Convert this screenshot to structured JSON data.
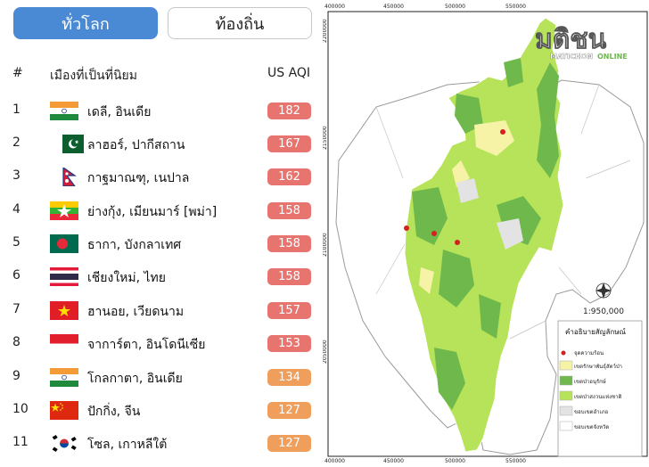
{
  "tabs": {
    "global": "ทั่วโลก",
    "local": "ท้องถิ่น"
  },
  "table": {
    "col_rank": "#",
    "col_city": "เมืองที่เป็นที่นิยม",
    "col_aqi": "US AQI",
    "rows": [
      {
        "rank": "1",
        "city": "เดลี, อินเดีย",
        "aqi": "182",
        "color": "#e8746f",
        "flag": "india-flag"
      },
      {
        "rank": "2",
        "city": "ลาฮอร์, ปากีสถาน",
        "aqi": "167",
        "color": "#e8746f",
        "flag": "pakistan-flag"
      },
      {
        "rank": "3",
        "city": "กาฐมาณฑุ, เนปาล",
        "aqi": "162",
        "color": "#e8746f",
        "flag": "nepal-flag"
      },
      {
        "rank": "4",
        "city": "ย่างกุ้ง, เมียนมาร์ [พม่า]",
        "aqi": "158",
        "color": "#e8746f",
        "flag": "myanmar-flag"
      },
      {
        "rank": "5",
        "city": "ธากา, บังกลาเทศ",
        "aqi": "158",
        "color": "#e8746f",
        "flag": "bangladesh-flag"
      },
      {
        "rank": "6",
        "city": "เชียงใหม่, ไทย",
        "aqi": "158",
        "color": "#e8746f",
        "flag": "thailand-flag"
      },
      {
        "rank": "7",
        "city": "ฮานอย, เวียดนาม",
        "aqi": "157",
        "color": "#e8746f",
        "flag": "vietnam-flag"
      },
      {
        "rank": "8",
        "city": "จาการ์ตา, อินโดนีเซีย",
        "aqi": "153",
        "color": "#e8746f",
        "flag": "indonesia-flag"
      },
      {
        "rank": "9",
        "city": "โกลกาตา, อินเดีย",
        "aqi": "134",
        "color": "#f09e5c",
        "flag": "india-flag"
      },
      {
        "rank": "10",
        "city": "ปักกิ่ง, จีน",
        "aqi": "127",
        "color": "#f09e5c",
        "flag": "china-flag"
      },
      {
        "rank": "11",
        "city": "โซล, เกาหลีใต้",
        "aqi": "127",
        "color": "#f09e5c",
        "flag": "korea-flag"
      }
    ]
  },
  "map": {
    "x_ticks": [
      "400000",
      "450000",
      "500000",
      "550000"
    ],
    "y_ticks": [
      "2200000",
      "2150000",
      "2100000",
      "2050000"
    ],
    "scale": "1:950,000",
    "watermark": {
      "main": "มติชน",
      "sub_left": "MATICHON",
      "sub_right": "ONLINE"
    },
    "legend": {
      "title": "คำอธิบายสัญลักษณ์",
      "items": [
        {
          "label": "จุดความร้อน",
          "color": "#d42020"
        },
        {
          "label": "เขตรักษาพันธุ์สัตว์ป่า",
          "color": "#f6f3a6"
        },
        {
          "label": "เขตป่าอนุรักษ์",
          "color": "#6fb84c"
        },
        {
          "label": "เขตป่าสงวนแห่งชาติ",
          "color": "#b7e35a"
        },
        {
          "label": "ขอบเขตอำเภอ",
          "color": "#e3e3e3"
        },
        {
          "label": "ขอบเขตจังหวัด",
          "color": "#ffffff"
        }
      ]
    }
  }
}
